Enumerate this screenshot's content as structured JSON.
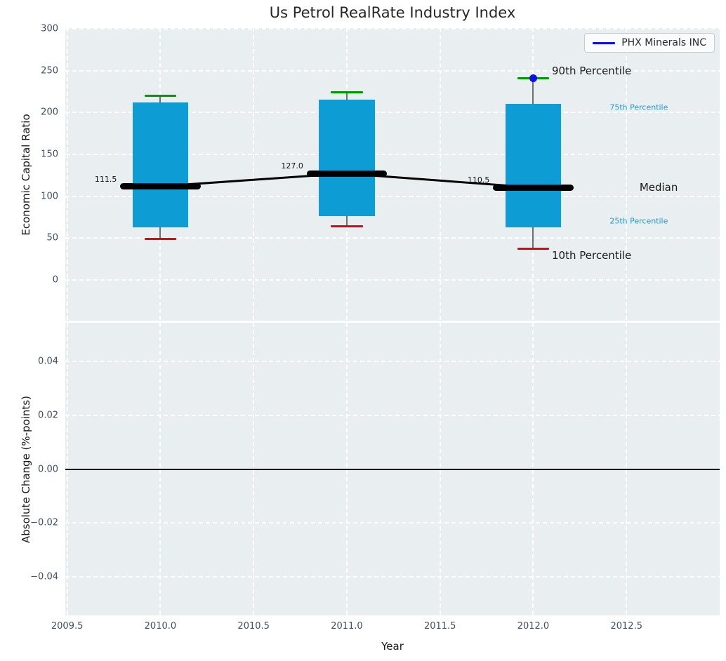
{
  "chart_data": {
    "type": "box",
    "title": "Us Petrol RealRate Industry Index",
    "xlabel": "Year",
    "xlim": [
      2009.49,
      2013.0
    ],
    "xticks": [
      2009.5,
      2010.0,
      2010.5,
      2011.0,
      2011.5,
      2012.0,
      2012.5
    ],
    "legend": {
      "label": "PHX Minerals INC",
      "line_color": "#0f0fe8"
    },
    "top_panel": {
      "ylabel": "Economic Capital Ratio",
      "ylim": [
        -48.6,
        300.8
      ],
      "yticks": [
        300,
        250,
        200,
        150,
        100,
        50,
        0
      ],
      "series": [
        {
          "year": 2010,
          "p10": 49,
          "p25": 63,
          "median": 111.5,
          "p75": 212,
          "p90": 220,
          "median_label": "111.5"
        },
        {
          "year": 2011,
          "p10": 64,
          "p25": 76,
          "median": 127.0,
          "p75": 215,
          "p90": 224,
          "median_label": "127.0"
        },
        {
          "year": 2012,
          "p10": 37,
          "p25": 63,
          "median": 110.5,
          "p75": 210,
          "p90": 241,
          "median_label": "110.5"
        }
      ],
      "company_series": {
        "name": "PHX Minerals INC",
        "points": [
          {
            "year": 2012,
            "value": 241
          }
        ]
      },
      "annotations": [
        {
          "text": "90th Percentile",
          "year": 2012.1,
          "value": 250,
          "color": "#1a1a1a",
          "size": 15
        },
        {
          "text": "75th Percentile",
          "year": 2012.41,
          "value": 206,
          "color": "#16a0d8",
          "size": 11
        },
        {
          "text": "Median",
          "year": 2012.57,
          "value": 111,
          "color": "#1a1a1a",
          "size": 15
        },
        {
          "text": "25th Percentile",
          "year": 2012.41,
          "value": 70,
          "color": "#16a0d8",
          "size": 11
        },
        {
          "text": "10th Percentile",
          "year": 2012.1,
          "value": 29,
          "color": "#1a1a1a",
          "size": 15
        }
      ]
    },
    "bottom_panel": {
      "ylabel": "Absolute Change (%-points)",
      "ylim": [
        -0.0545,
        0.0545
      ],
      "ytick_labels": [
        "0.04",
        "0.02",
        "0.00",
        "−0.02",
        "−0.04"
      ],
      "ytick_values": [
        0.04,
        0.02,
        0.0,
        -0.02,
        -0.04
      ],
      "zero_line": 0.0
    },
    "colors": {
      "box_fill": "#0d9cd4",
      "median": "#000000",
      "p90_cap": "#009a00",
      "p10_cap": "#e8000b",
      "whisker": "#707070",
      "company_point": "#0f0fe8",
      "plot_bg": "#e9eef0",
      "grid": "#ffffff",
      "tick_label": "#3f4e63"
    },
    "geometry_notes": {
      "box_width_years": 0.3,
      "median_marker_width_years": 0.43,
      "cap_width_years": 0.17
    }
  }
}
